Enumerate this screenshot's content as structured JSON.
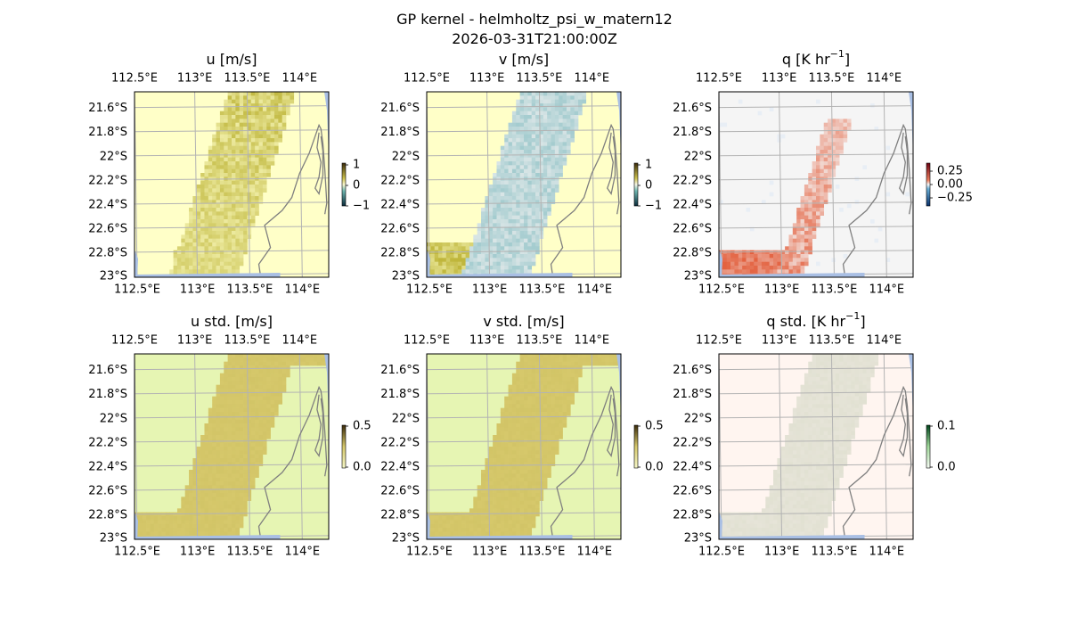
{
  "figure": {
    "title": "GP kernel - helmholtz_psi_w_matern12",
    "timestamp": "2026-03-31T21:00:00Z"
  },
  "colors": {
    "land": "#ffffc8",
    "ocean_edge": "#a9bfe4",
    "grid": "#b3b3b3",
    "coast": "#7f7f7f",
    "u_pos": "#b7ad2a",
    "v_neg": "#7ab8bd",
    "q_pos": "#e3613f",
    "std_land": "#e6f5b3",
    "std_ocean": "#d6c86b",
    "q_std_land": "#fff5f0",
    "q_std_ocean": "#e6e4d8"
  },
  "chart_data": [
    {
      "type": "heatmap",
      "id": "u",
      "title": "u [m/s]",
      "xticks": [
        "112.5°E",
        "113°E",
        "113.5°E",
        "114°E"
      ],
      "yticks": [
        "21.6°S",
        "21.8°S",
        "22°S",
        "22.2°S",
        "22.4°S",
        "22.6°S",
        "22.8°S",
        "23°S"
      ],
      "xlim": [
        112.4,
        114.15
      ],
      "ylim": [
        -23.0,
        -21.45
      ],
      "colorbar": {
        "ticks": [
          "1",
          "0",
          "−1"
        ],
        "range": [
          -1,
          1
        ]
      },
      "field": "u",
      "value_range": [
        0.0,
        0.8
      ]
    },
    {
      "type": "heatmap",
      "id": "v",
      "title": "v [m/s]",
      "xticks": [
        "112.5°E",
        "113°E",
        "113.5°E",
        "114°E"
      ],
      "yticks": [
        "21.6°S",
        "21.8°S",
        "22°S",
        "22.2°S",
        "22.4°S",
        "22.6°S",
        "22.8°S",
        "23°S"
      ],
      "xlim": [
        112.4,
        114.15
      ],
      "ylim": [
        -23.0,
        -21.45
      ],
      "colorbar": {
        "ticks": [
          "1",
          "0",
          "−1"
        ],
        "range": [
          -1,
          1
        ]
      },
      "field": "v",
      "value_range": [
        -0.5,
        0.6
      ]
    },
    {
      "type": "heatmap",
      "id": "q",
      "title": "q [K hr",
      "title_sup": "−1",
      "title_end": "]",
      "xticks": [
        "112.5°E",
        "113°E",
        "113.5°E",
        "114°E"
      ],
      "yticks": [
        "21.6°S",
        "21.8°S",
        "22°S",
        "22.2°S",
        "22.4°S",
        "22.6°S",
        "22.8°S",
        "23°S"
      ],
      "xlim": [
        112.4,
        114.15
      ],
      "ylim": [
        -23.0,
        -21.45
      ],
      "colorbar": {
        "ticks": [
          "0.25",
          "0.00",
          "−0.25"
        ],
        "range": [
          -0.4,
          0.4
        ]
      },
      "field": "q",
      "value_range": [
        0.0,
        0.35
      ]
    },
    {
      "type": "heatmap",
      "id": "u_std",
      "title": "u std. [m/s]",
      "xticks": [
        "112.5°E",
        "113°E",
        "113.5°E",
        "114°E"
      ],
      "yticks": [
        "21.6°S",
        "21.8°S",
        "22°S",
        "22.2°S",
        "22.4°S",
        "22.6°S",
        "22.8°S",
        "23°S"
      ],
      "xlim": [
        112.4,
        114.15
      ],
      "ylim": [
        -23.0,
        -21.45
      ],
      "colorbar": {
        "ticks": [
          "0.5",
          "0.0"
        ],
        "range": [
          0,
          0.5
        ]
      },
      "field": "std",
      "value_range": [
        0.0,
        0.35
      ]
    },
    {
      "type": "heatmap",
      "id": "v_std",
      "title": "v std. [m/s]",
      "xticks": [
        "112.5°E",
        "113°E",
        "113.5°E",
        "114°E"
      ],
      "yticks": [
        "21.6°S",
        "21.8°S",
        "22°S",
        "22.2°S",
        "22.4°S",
        "22.6°S",
        "22.8°S",
        "23°S"
      ],
      "xlim": [
        112.4,
        114.15
      ],
      "ylim": [
        -23.0,
        -21.45
      ],
      "colorbar": {
        "ticks": [
          "0.5",
          "0.0"
        ],
        "range": [
          0,
          0.5
        ]
      },
      "field": "std",
      "value_range": [
        0.0,
        0.35
      ]
    },
    {
      "type": "heatmap",
      "id": "q_std",
      "title": "q std. [K hr",
      "title_sup": "−1",
      "title_end": "]",
      "xticks": [
        "112.5°E",
        "113°E",
        "113.5°E",
        "114°E"
      ],
      "yticks": [
        "21.6°S",
        "21.8°S",
        "22°S",
        "22.2°S",
        "22.4°S",
        "22.6°S",
        "22.8°S",
        "23°S"
      ],
      "xlim": [
        112.4,
        114.15
      ],
      "ylim": [
        -23.0,
        -21.45
      ],
      "colorbar": {
        "ticks": [
          "0.1",
          "0.0"
        ],
        "range": [
          0,
          0.1
        ]
      },
      "field": "qstd",
      "value_range": [
        0.0,
        0.05
      ]
    }
  ]
}
